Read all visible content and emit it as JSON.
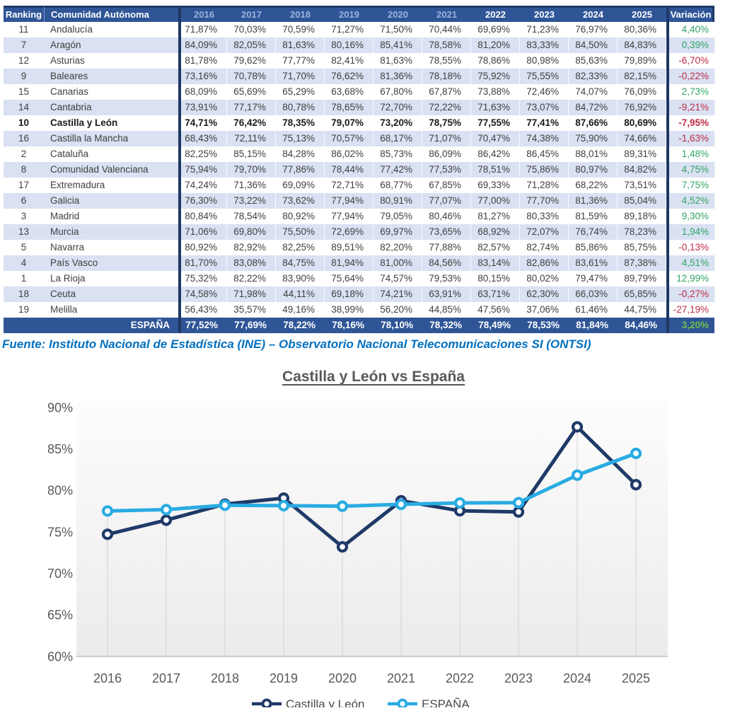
{
  "table": {
    "columns": [
      "Ranking",
      "Comunidad Autónoma",
      "2016",
      "2017",
      "2018",
      "2019",
      "2020",
      "2021",
      "2022",
      "2023",
      "2024",
      "2025",
      "Variación"
    ],
    "rows": [
      {
        "rank": "11",
        "name": "Andalucía",
        "values": [
          "71,87%",
          "70,03%",
          "70,59%",
          "71,27%",
          "71,50%",
          "70,44%",
          "69,69%",
          "71,23%",
          "76,97%",
          "80,36%"
        ],
        "variation": "4,40%",
        "bold": false
      },
      {
        "rank": "7",
        "name": "Aragón",
        "values": [
          "84,09%",
          "82,05%",
          "81,63%",
          "80,16%",
          "85,41%",
          "78,58%",
          "81,20%",
          "83,33%",
          "84,50%",
          "84,83%"
        ],
        "variation": "0,39%",
        "bold": false
      },
      {
        "rank": "12",
        "name": "Asturias",
        "values": [
          "81,78%",
          "79,62%",
          "77,77%",
          "82,41%",
          "81,63%",
          "78,55%",
          "78,86%",
          "80,98%",
          "85,63%",
          "79,89%"
        ],
        "variation": "-6,70%",
        "bold": false
      },
      {
        "rank": "9",
        "name": "Baleares",
        "values": [
          "73,16%",
          "70,78%",
          "71,70%",
          "76,62%",
          "81,36%",
          "78,18%",
          "75,92%",
          "75,55%",
          "82,33%",
          "82,15%"
        ],
        "variation": "-0,22%",
        "bold": false
      },
      {
        "rank": "15",
        "name": "Canarias",
        "values": [
          "68,09%",
          "65,69%",
          "65,29%",
          "63,68%",
          "67,80%",
          "67,87%",
          "73,88%",
          "72,46%",
          "74,07%",
          "76,09%"
        ],
        "variation": "2,73%",
        "bold": false
      },
      {
        "rank": "14",
        "name": "Cantabria",
        "values": [
          "73,91%",
          "77,17%",
          "80,78%",
          "78,65%",
          "72,70%",
          "72,22%",
          "71,63%",
          "73,07%",
          "84,72%",
          "76,92%"
        ],
        "variation": "-9,21%",
        "bold": false
      },
      {
        "rank": "10",
        "name": "Castilla y León",
        "values": [
          "74,71%",
          "76,42%",
          "78,35%",
          "79,07%",
          "73,20%",
          "78,75%",
          "77,55%",
          "77,41%",
          "87,66%",
          "80,69%"
        ],
        "variation": "-7,95%",
        "bold": true
      },
      {
        "rank": "16",
        "name": "Castilla la Mancha",
        "values": [
          "68,43%",
          "72,11%",
          "75,13%",
          "70,57%",
          "68,17%",
          "71,07%",
          "70,47%",
          "74,38%",
          "75,90%",
          "74,66%"
        ],
        "variation": "-1,63%",
        "bold": false
      },
      {
        "rank": "2",
        "name": "Cataluña",
        "values": [
          "82,25%",
          "85,15%",
          "84,28%",
          "86,02%",
          "85,73%",
          "86,09%",
          "86,42%",
          "86,45%",
          "88,01%",
          "89,31%"
        ],
        "variation": "1,48%",
        "bold": false
      },
      {
        "rank": "8",
        "name": "Comunidad Valenciana",
        "values": [
          "75,94%",
          "79,70%",
          "77,86%",
          "78,44%",
          "77,42%",
          "77,53%",
          "78,51%",
          "75,86%",
          "80,97%",
          "84,82%"
        ],
        "variation": "4,75%",
        "bold": false
      },
      {
        "rank": "17",
        "name": "Extremadura",
        "values": [
          "74,24%",
          "71,36%",
          "69,09%",
          "72,71%",
          "68,77%",
          "67,85%",
          "69,33%",
          "71,28%",
          "68,22%",
          "73,51%"
        ],
        "variation": "7,75%",
        "bold": false
      },
      {
        "rank": "6",
        "name": "Galicia",
        "values": [
          "76,30%",
          "73,22%",
          "73,62%",
          "77,94%",
          "80,91%",
          "77,07%",
          "77,00%",
          "77,70%",
          "81,36%",
          "85,04%"
        ],
        "variation": "4,52%",
        "bold": false
      },
      {
        "rank": "3",
        "name": "Madrid",
        "values": [
          "80,84%",
          "78,54%",
          "80,92%",
          "77,94%",
          "79,05%",
          "80,46%",
          "81,27%",
          "80,33%",
          "81,59%",
          "89,18%"
        ],
        "variation": "9,30%",
        "bold": false
      },
      {
        "rank": "13",
        "name": "Murcia",
        "values": [
          "71,06%",
          "69,80%",
          "75,50%",
          "72,69%",
          "69,97%",
          "73,65%",
          "68,92%",
          "72,07%",
          "76,74%",
          "78,23%"
        ],
        "variation": "1,94%",
        "bold": false
      },
      {
        "rank": "5",
        "name": "Navarra",
        "values": [
          "80,92%",
          "82,92%",
          "82,25%",
          "89,51%",
          "82,20%",
          "77,88%",
          "82,57%",
          "82,74%",
          "85,86%",
          "85,75%"
        ],
        "variation": "-0,13%",
        "bold": false
      },
      {
        "rank": "4",
        "name": "País Vasco",
        "values": [
          "81,70%",
          "83,08%",
          "84,75%",
          "81,94%",
          "81,00%",
          "84,56%",
          "83,14%",
          "82,86%",
          "83,61%",
          "87,38%"
        ],
        "variation": "4,51%",
        "bold": false
      },
      {
        "rank": "1",
        "name": "La Rioja",
        "values": [
          "75,32%",
          "82,22%",
          "83,90%",
          "75,64%",
          "74,57%",
          "79,53%",
          "80,15%",
          "80,02%",
          "79,47%",
          "89,79%"
        ],
        "variation": "12,99%",
        "bold": false
      },
      {
        "rank": "18",
        "name": "Ceuta",
        "values": [
          "74,58%",
          "71,98%",
          "44,11%",
          "69,18%",
          "74,21%",
          "63,91%",
          "63,71%",
          "62,30%",
          "66,03%",
          "65,85%"
        ],
        "variation": "-0,27%",
        "bold": false
      },
      {
        "rank": "19",
        "name": "Melilla",
        "values": [
          "56,43%",
          "35,57%",
          "49,16%",
          "38,99%",
          "56,20%",
          "44,85%",
          "47,56%",
          "37,06%",
          "61,46%",
          "44,75%"
        ],
        "variation": "-27,19%",
        "bold": false
      }
    ],
    "total_row": {
      "label": "ESPAÑA",
      "values": [
        "77,52%",
        "77,69%",
        "78,22%",
        "78,16%",
        "78,10%",
        "78,32%",
        "78,49%",
        "78,53%",
        "81,84%",
        "84,46%"
      ],
      "variation": "3,20%"
    }
  },
  "source_note": "Fuente: Instituto Nacional de Estadística (INE) – Observatorio Nacional Telecomunicaciones SI (ONTSI)",
  "chart_data": {
    "type": "line",
    "title": "Castilla y León vs España",
    "categories": [
      "2016",
      "2017",
      "2018",
      "2019",
      "2020",
      "2021",
      "2022",
      "2023",
      "2024",
      "2025"
    ],
    "series": [
      {
        "name": "Castilla y León",
        "color": "#1F3A68",
        "values": [
          74.71,
          76.42,
          78.35,
          79.07,
          73.2,
          78.75,
          77.55,
          77.41,
          87.66,
          80.69
        ]
      },
      {
        "name": "ESPAÑA",
        "color": "#29ABE2",
        "values": [
          77.52,
          77.69,
          78.22,
          78.16,
          78.1,
          78.32,
          78.49,
          78.53,
          81.84,
          84.46
        ]
      }
    ],
    "ylim": [
      60,
      90
    ],
    "yticks": [
      {
        "label": "90%",
        "value": 90
      },
      {
        "label": "85%",
        "value": 85
      },
      {
        "label": "80%",
        "value": 80
      },
      {
        "label": "75%",
        "value": 75
      },
      {
        "label": "70%",
        "value": 70
      },
      {
        "label": "65%",
        "value": 65
      },
      {
        "label": "60%",
        "value": 60
      }
    ],
    "grid": "vertical-drop-lines",
    "legend_position": "bottom"
  },
  "colors": {
    "header_bg": "#2F5597",
    "header_year_muted": "#9DB3DC",
    "divider": "#1F3864",
    "alt_row": "#D9E1F2",
    "positive": "#2FA566",
    "negative": "#C02B45",
    "total_positive": "#6CC04A",
    "source_blue": "#0070C0",
    "title_gray": "#595959",
    "series_castilla": "#1F3A68",
    "series_espana": "#29ABE2"
  }
}
